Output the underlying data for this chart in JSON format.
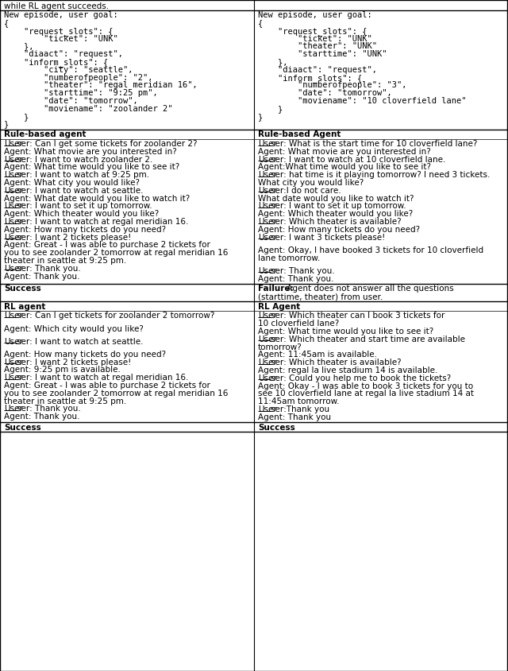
{
  "figsize": [
    6.4,
    8.44
  ],
  "dpi": 100,
  "bg_color": "#ffffff",
  "top_text": "while RL agent succeeds.",
  "left_goal": [
    "New episode, user goal:",
    "{",
    "    \"request_slots\": {",
    "        \"ticket\": \"UNK\"",
    "    },",
    "    \"diaact\": \"request\",",
    "    \"inform_slots\": {",
    "        \"city\": \"seattle\",",
    "        \"numberofpeople\": \"2\",",
    "        \"theater\": \"regal meridian 16\",",
    "        \"starttime\": \"9:25 pm\",",
    "        \"date\": \"tomorrow\",",
    "        \"moviename\": \"zoolander 2\"",
    "    }",
    "}"
  ],
  "right_goal": [
    "New episode, user goal:",
    "{",
    "    \"request_slots\": {",
    "        \"ticket\": \"UNK\"",
    "        \"theater\": \"UNK\"",
    "        \"starttime\": \"UNK\"",
    "    },",
    "    \"diaact\": \"request\",",
    "    \"inform_slots\": {",
    "        \"numberofpeople\": \"3\",",
    "        \"date\": \"tomorrow\",",
    "        \"moviename\": \"10 cloverfield lane\"",
    "    }",
    "}"
  ],
  "left_rule_header": "Rule-based agent",
  "right_rule_header": "Rule-based Agent",
  "left_rule_lines": [
    [
      "U",
      "ser: Can I get some tickets for zoolander 2?"
    ],
    [
      "",
      "Agent: What movie are you interested in?"
    ],
    [
      "U",
      "ser: I want to watch zoolander 2."
    ],
    [
      "",
      "Agent: What time would you like to see it?"
    ],
    [
      "U",
      "ser: I want to watch at 9:25 pm."
    ],
    [
      "",
      "Agent: What city you would like?"
    ],
    [
      "U",
      "ser: I want to watch at seattle."
    ],
    [
      "",
      "Agent: What date would you like to watch it?"
    ],
    [
      "U",
      "ser: I want to set it up tomorrow."
    ],
    [
      "",
      "Agent: Which theater would you like?"
    ],
    [
      "U",
      "ser: I want to watch at regal meridian 16."
    ],
    [
      "",
      "Agent: How many tickets do you need?"
    ],
    [
      "U",
      "ser: I want 2 tickets please!"
    ],
    [
      "",
      "Agent: Great - I was able to purchase 2 tickets for"
    ],
    [
      "",
      "you to see zoolander 2 tomorrow at regal meridian 16"
    ],
    [
      "",
      "theater in seattle at 9:25 pm."
    ],
    [
      "U",
      "ser: Thank you."
    ],
    [
      "",
      "Agent: Thank you."
    ]
  ],
  "right_rule_lines": [
    [
      "U",
      "ser: What is the start time for 10 cloverfield lane?"
    ],
    [
      "",
      "Agent: What movie are you interested in?"
    ],
    [
      "U",
      "ser: I want to watch at 10 cloverfield lane."
    ],
    [
      "",
      "Agent:What time would you like to see it?"
    ],
    [
      "U",
      "ser: hat time is it playing tomorrow? I need 3 tickets."
    ],
    [
      "",
      "What city you would like?"
    ],
    [
      "U",
      "ser:I do not care."
    ],
    [
      "",
      "What date would you like to watch it?"
    ],
    [
      "U",
      "ser: I want to set it up tomorrow."
    ],
    [
      "",
      "Agent: Which theater would you like?"
    ],
    [
      "U",
      "ser: Which theater is available?"
    ],
    [
      "",
      "Agent: How many tickets do you need?"
    ],
    [
      "U",
      "ser: I want 3 tickets please!"
    ],
    [
      "",
      ""
    ],
    [
      "",
      "Agent: Okay, I have booked 3 tickets for 10 cloverfield"
    ],
    [
      "",
      "lane tomorrow."
    ],
    [
      "",
      ""
    ],
    [
      "U",
      "ser: Thank you."
    ],
    [
      "",
      "Agent: Thank you."
    ]
  ],
  "left_success": "Success",
  "right_failure_bold": "Failure:",
  "right_failure_rest": " Agent does not answer all the questions",
  "right_failure_line2": "(starttime, theater) from user.",
  "left_rl_header": "RL agent",
  "right_rl_header": "RL Agent",
  "left_rl_lines": [
    [
      "U",
      "ser: Can I get tickets for zoolander 2 tomorrow?"
    ],
    [
      "",
      ""
    ],
    [
      "",
      "Agent: Which city would you like?"
    ],
    [
      "",
      ""
    ],
    [
      "U",
      "ser: I want to watch at seattle."
    ],
    [
      "",
      ""
    ],
    [
      "",
      "Agent: How many tickets do you need?"
    ],
    [
      "U",
      "ser: I want 2 tickets please!"
    ],
    [
      "",
      "Agent: 9:25 pm is available."
    ],
    [
      "U",
      "ser: I want to watch at regal meridian 16."
    ],
    [
      "",
      "Agent: Great - I was able to purchase 2 tickets for"
    ],
    [
      "",
      "you to see zoolander 2 tomorrow at regal meridian 16"
    ],
    [
      "",
      "theater in seattle at 9:25 pm."
    ],
    [
      "U",
      "ser: Thank you."
    ],
    [
      "",
      "Agent: Thank you."
    ]
  ],
  "right_rl_lines": [
    [
      "U",
      "ser: Which theater can I book 3 tickets for"
    ],
    [
      "",
      "10 cloverfield lane?"
    ],
    [
      "",
      "Agent: What time would you like to see it?"
    ],
    [
      "U",
      "ser: Which theater and start time are available"
    ],
    [
      "",
      "tomorrow?"
    ],
    [
      "",
      "Agent: 11:45am is available."
    ],
    [
      "U",
      "ser: Which theater is available?"
    ],
    [
      "",
      "Agent: regal la live stadium 14 is available."
    ],
    [
      "U",
      "ser: Could you help me to book the tickets?"
    ],
    [
      "",
      "Agent: Okay - I was able to book 3 tickets for you to"
    ],
    [
      "",
      "see 10 cloverfield lane at regal la live stadium 14 at"
    ],
    [
      "",
      "11:45am tomorrow."
    ],
    [
      "U",
      "ser:Thank you"
    ],
    [
      "",
      "Agent: Thank you"
    ]
  ],
  "final_success_left": "Success",
  "final_success_right": "Success"
}
